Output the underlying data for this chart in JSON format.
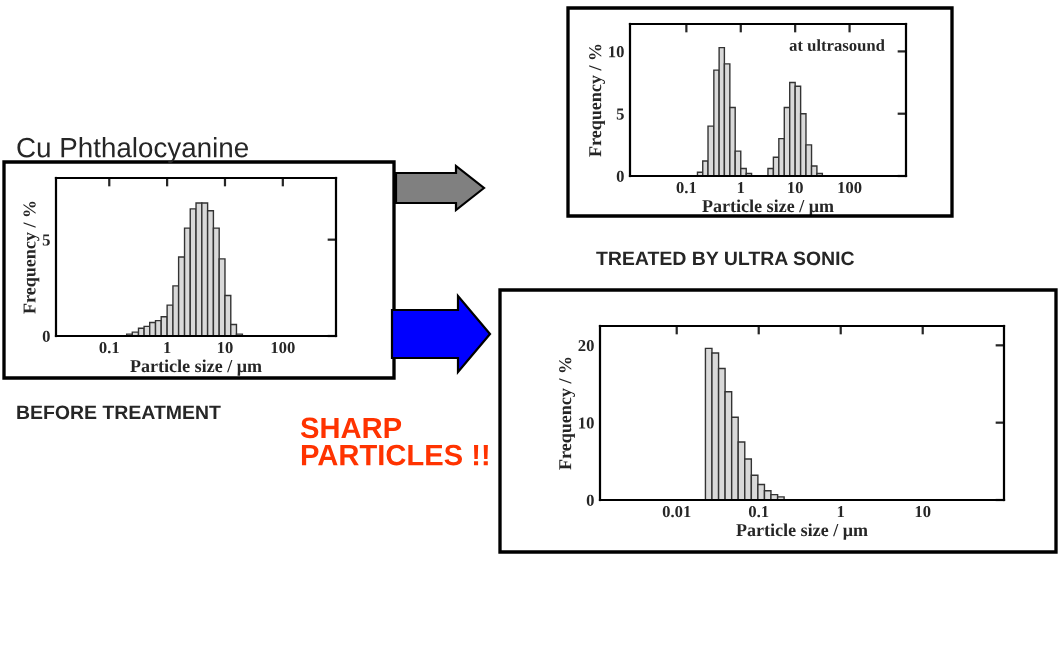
{
  "chart_data": [
    {
      "type": "histogram",
      "title": "Cu Phthalocyanine",
      "xlabel": "Particle size / μm",
      "ylabel": "Frequency / %",
      "log": "x",
      "color": "#d9d9d9",
      "annotations": [
        "BEFORE TREATMENT"
      ],
      "xlim": [
        0.012,
        830
      ],
      "xticks": [
        0.1,
        1,
        10,
        100
      ],
      "ylim": [
        0,
        8.2
      ],
      "yticks": [
        0,
        5
      ],
      "bins": [
        0.2,
        0.25,
        0.32,
        0.4,
        0.5,
        0.63,
        0.79,
        1,
        1.26,
        1.58,
        2,
        2.51,
        3.16,
        3.98,
        5.01,
        6.31,
        7.94,
        10,
        12.6,
        15.8,
        20
      ],
      "values": [
        0.1,
        0.2,
        0.4,
        0.5,
        0.7,
        0.8,
        1.0,
        1.6,
        2.6,
        4.1,
        5.6,
        6.6,
        6.9,
        6.9,
        6.5,
        5.6,
        4.0,
        2.1,
        0.6,
        0.1
      ]
    },
    {
      "type": "histogram",
      "xlabel": "Particle size / μm",
      "ylabel": "Frequency / %",
      "log": "x",
      "color": "#d9d9d9",
      "annotations": [
        "at ultrasound",
        "TREATED BY ULTRA SONIC"
      ],
      "xlim": [
        0.0092,
        1090
      ],
      "xticks": [
        0.1,
        1,
        10,
        100
      ],
      "ylim": [
        0,
        12.2
      ],
      "yticks": [
        0,
        5,
        10
      ],
      "bins": [
        0.16,
        0.2,
        0.25,
        0.32,
        0.4,
        0.5,
        0.63,
        0.79,
        1,
        1.26,
        1.58,
        3.16,
        3.98,
        5.01,
        6.31,
        7.94,
        10,
        12.6,
        15.8,
        20,
        25.1,
        31.6
      ],
      "values": [
        0.3,
        1.2,
        4,
        8.5,
        10.3,
        9.0,
        5.5,
        2.0,
        0.6,
        0.2,
        null,
        0.6,
        1.5,
        3.0,
        5.5,
        7.5,
        7.2,
        5.0,
        2.5,
        0.8,
        0.2
      ]
    },
    {
      "type": "histogram",
      "xlabel": "Particle size / μm",
      "ylabel": "Frequency / %",
      "log": "x",
      "color": "#d9d9d9",
      "annotations": [
        "SHARP\nPARTICLES !!"
      ],
      "xlim": [
        0.00116,
        98
      ],
      "xticks": [
        0.01,
        0.1,
        1,
        10
      ],
      "ylim": [
        0,
        22.5
      ],
      "yticks": [
        0,
        10,
        20
      ],
      "bins": [
        0.0224,
        0.0269,
        0.0324,
        0.0389,
        0.0468,
        0.0562,
        0.0676,
        0.0813,
        0.0977,
        0.1175,
        0.141,
        0.17,
        0.204
      ],
      "values": [
        19.6,
        19.0,
        17.0,
        14.0,
        10.7,
        7.5,
        5.3,
        3.2,
        2.0,
        1.2,
        0.7,
        0.4
      ]
    }
  ]
}
